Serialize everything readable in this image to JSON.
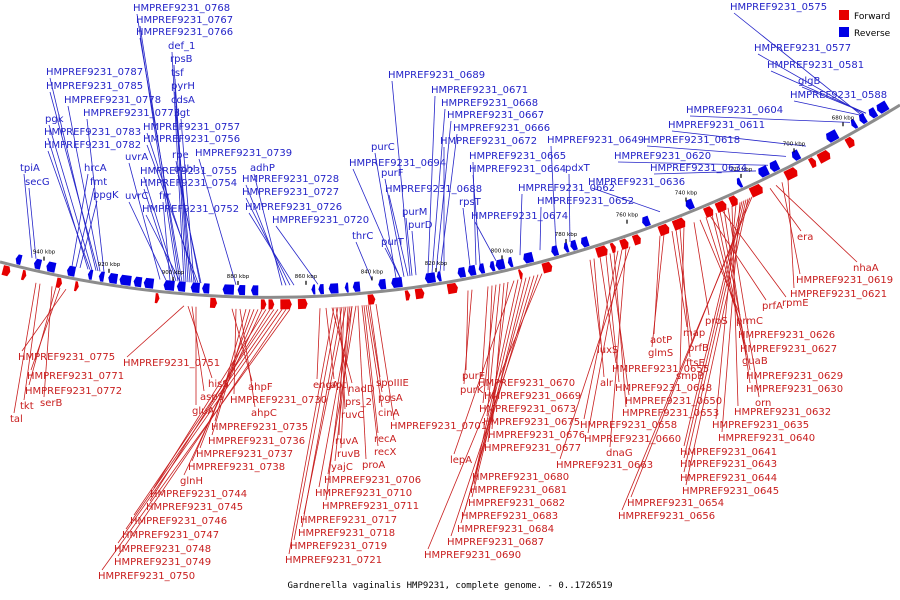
{
  "caption": "Gardnerella vaginalis HMP9231, complete genome. - 0..1726519",
  "legend": {
    "forward": "Forward",
    "reverse": "Reverse"
  },
  "colors": {
    "forward": "#e60000",
    "reverse": "#0000e6",
    "forward_label": "#c81e1e",
    "reverse_label": "#2424c8",
    "backbone": "#8c8c8c"
  },
  "ticks": [
    "940 kbp",
    "920 kbp",
    "900 kbp",
    "880 kbp",
    "860 kbp",
    "840 kbp",
    "820 kbp",
    "800 kbp",
    "780 kbp",
    "760 kbp",
    "740 kbp",
    "720 kbp",
    "700 kbp",
    "680 kbp"
  ],
  "reverse_labels": [
    "HMPREF9231_0768",
    "HMPREF9231_0767",
    "HMPREF9231_0766",
    "def_1",
    "rpsB",
    "tsf",
    "pyrH",
    "cdsA",
    "lgt",
    "HMPREF9231_0757",
    "HMPREF9231_0756",
    "rpe",
    "HMPREF9231_0739",
    "HMPREF9231_0755",
    "HMPREF9231_0754",
    "odhI",
    "frr",
    "uvrC",
    "uvrA",
    "HMPREF9231_0752",
    "adhP",
    "HMPREF9231_0728",
    "HMPREF9231_0727",
    "HMPREF9231_0726",
    "HMPREF9231_0720",
    "HMPREF9231_0787",
    "HMPREF9231_0785",
    "HMPREF9231_0778",
    "HMPREF9231_0773",
    "pgk",
    "HMPREF9231_0783",
    "HMPREF9231_0782",
    "hrcA",
    "fmt",
    "ppgK",
    "tpiA",
    "secG",
    "HMPREF9231_0689",
    "HMPREF9231_0671",
    "HMPREF9231_0668",
    "HMPREF9231_0667",
    "HMPREF9231_0666",
    "HMPREF9231_0672",
    "HMPREF9231_0665",
    "HMPREF9231_0664",
    "HMPREF9231_0662",
    "HMPREF9231_0649",
    "pdxT",
    "HMPREF9231_0652",
    "purC",
    "HMPREF9231_0694",
    "purF",
    "HMPREF9231_0688",
    "rpsT",
    "HMPREF9231_0674",
    "purM",
    "purD",
    "purT",
    "thrC",
    "HMPREF9231_0575",
    "HMPREF9231_0577",
    "HMPREF9231_0581",
    "glgB",
    "HMPREF9231_0588",
    "HMPREF9231_0604",
    "HMPREF9231_0611",
    "HMPREF9231_0618",
    "HMPREF9231_0620",
    "HMPREF9231_0634",
    "HMPREF9231_0636"
  ],
  "forward_labels": [
    "HMPREF9231_0775",
    "HMPREF9231_0771",
    "HMPREF9231_0772",
    "serB",
    "tkt",
    "tal",
    "HMPREF9231_0751",
    "hisS",
    "aspS",
    "gluA",
    "ahpF",
    "HMPREF9231_0730",
    "ahpC",
    "HMPREF9231_0735",
    "HMPREF9231_0736",
    "HMPREF9231_0737",
    "HMPREF9231_0738",
    "glnH",
    "HMPREF9231_0744",
    "HMPREF9231_0745",
    "HMPREF9231_0746",
    "HMPREF9231_0747",
    "HMPREF9231_0748",
    "HMPREF9231_0749",
    "HMPREF9231_0750",
    "engA",
    "apt",
    "nadD",
    "prs_2",
    "ruvC",
    "ruvA",
    "ruvB",
    "yajC",
    "spoIIIE",
    "pgsA",
    "cinA",
    "recA",
    "recX",
    "proA",
    "HMPREF9231_0701",
    "HMPREF9231_0706",
    "HMPREF9231_0710",
    "HMPREF9231_0711",
    "HMPREF9231_0717",
    "HMPREF9231_0718",
    "HMPREF9231_0719",
    "HMPREF9231_0721",
    "purE",
    "purK",
    "HMPREF9231_0670",
    "HMPREF9231_0669",
    "HMPREF9231_0673",
    "HMPREF9231_0675",
    "HMPREF9231_0676",
    "HMPREF9231_0677",
    "lepA",
    "HMPREF9231_0680",
    "HMPREF9231_0681",
    "HMPREF9231_0682",
    "HMPREF9231_0683",
    "HMPREF9231_0684",
    "HMPREF9231_0687",
    "HMPREF9231_0690",
    "luxS",
    "alr",
    "HMPREF9231_0655",
    "HMPREF9231_0648",
    "HMPREF9231_0650",
    "HMPREF9231_0653",
    "HMPREF9231_0658",
    "HMPREF9231_0660",
    "dnaG",
    "HMPREF9231_0663",
    "aotP",
    "glmS",
    "map",
    "prfB",
    "ftsE",
    "smpB",
    "proS",
    "prmC",
    "prfA",
    "rpmE",
    "HMPREF9231_0626",
    "HMPREF9231_0627",
    "guaB",
    "HMPREF9231_0629",
    "HMPREF9231_0630",
    "orn",
    "HMPREF9231_0632",
    "HMPREF9231_0635",
    "HMPREF9231_0640",
    "HMPREF9231_0641",
    "HMPREF9231_0643",
    "HMPREF9231_0644",
    "HMPREF9231_0645",
    "HMPREF9231_0654",
    "HMPREF9231_0656",
    "era",
    "nhaA",
    "HMPREF9231_0619",
    "HMPREF9231_0621"
  ]
}
